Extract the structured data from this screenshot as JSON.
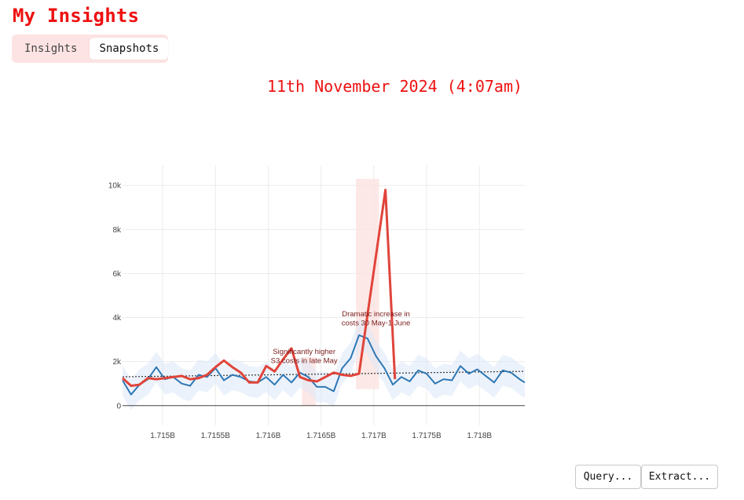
{
  "header": {
    "title": "My Insights"
  },
  "tabs": [
    {
      "label": "Insights",
      "active": false
    },
    {
      "label": "Snapshots",
      "active": true
    }
  ],
  "snapshot": {
    "date": "11th November 2024 (4:07am)"
  },
  "buttons": {
    "query": "Query...",
    "extract": "Extract..."
  },
  "colors": {
    "title": "#ee1111",
    "baseline_series": "#2e78b4",
    "anomaly_series": "#e0443a",
    "band": "#dce8f7",
    "highlight": "#fbe2e0",
    "annotation_text": "#7a1c1c"
  },
  "chart_data": {
    "type": "line",
    "title": "",
    "xlabel": "",
    "ylabel": "",
    "xlim": [
      1.71462,
      1.71843
    ],
    "ylim": [
      -900,
      10900
    ],
    "grid": true,
    "x_ticks": [
      {
        "value": 1.715,
        "label": "1.715B"
      },
      {
        "value": 1.7155,
        "label": "1.7155B"
      },
      {
        "value": 1.716,
        "label": "1.716B"
      },
      {
        "value": 1.7165,
        "label": "1.7165B"
      },
      {
        "value": 1.717,
        "label": "1.717B"
      },
      {
        "value": 1.7175,
        "label": "1.7175B"
      },
      {
        "value": 1.718,
        "label": "1.718B"
      }
    ],
    "y_ticks": [
      {
        "value": 0,
        "label": "0"
      },
      {
        "value": 2000,
        "label": "2k"
      },
      {
        "value": 4000,
        "label": "4k"
      },
      {
        "value": 6000,
        "label": "6k"
      },
      {
        "value": 8000,
        "label": "8k"
      },
      {
        "value": 10000,
        "label": "10k"
      }
    ],
    "threshold": {
      "value": 1450,
      "style": "dotted"
    },
    "band_width": 700,
    "series": [
      {
        "role": "baseline",
        "x": [
          1.71462,
          1.7147,
          1.71478,
          1.71486,
          1.71494,
          1.71502,
          1.7151,
          1.71518,
          1.71526,
          1.71534,
          1.71542,
          1.7155,
          1.71558,
          1.71566,
          1.71574,
          1.71582,
          1.7159,
          1.71598,
          1.71606,
          1.71614,
          1.71622,
          1.7163,
          1.71638,
          1.71646,
          1.71654,
          1.71662,
          1.7167,
          1.71678,
          1.71686,
          1.71694,
          1.71702,
          1.7171,
          1.71718,
          1.71726,
          1.71734,
          1.71742,
          1.7175,
          1.71758,
          1.71766,
          1.71774,
          1.71782,
          1.7179,
          1.71798,
          1.71806,
          1.71814,
          1.71822,
          1.7183,
          1.71838,
          1.71843
        ],
        "y": [
          1150,
          500,
          950,
          1200,
          1750,
          1200,
          1300,
          1000,
          900,
          1400,
          1300,
          1700,
          1150,
          1400,
          1300,
          1100,
          1050,
          1300,
          950,
          1400,
          1050,
          1500,
          1300,
          850,
          850,
          650,
          1700,
          2150,
          3200,
          3050,
          2250,
          1700,
          950,
          1300,
          1100,
          1600,
          1450,
          1000,
          1200,
          1150,
          1800,
          1450,
          1650,
          1350,
          1050,
          1600,
          1500,
          1200,
          1050
        ]
      },
      {
        "role": "anomaly",
        "x": [
          1.71462,
          1.7147,
          1.71478,
          1.71486,
          1.71494,
          1.71502,
          1.7151,
          1.71518,
          1.71526,
          1.71534,
          1.71542,
          1.7155,
          1.71558,
          1.71566,
          1.71574,
          1.71582,
          1.7159,
          1.71598,
          1.71606,
          1.71614,
          1.71622,
          1.7163,
          1.71638,
          1.71646,
          1.71654,
          1.71662,
          1.7167,
          1.71678,
          1.71686,
          1.71711,
          1.7172
        ],
        "y": [
          1250,
          900,
          950,
          1250,
          1200,
          1250,
          1300,
          1350,
          1200,
          1250,
          1400,
          1750,
          2050,
          1750,
          1500,
          1050,
          1050,
          1800,
          1550,
          2100,
          2600,
          1300,
          1150,
          1100,
          1300,
          1500,
          1400,
          1350,
          1450,
          9800,
          1200
        ]
      }
    ],
    "highlights": [
      {
        "x0": 1.71632,
        "x1": 1.71645,
        "y0": 0,
        "y1": 2200
      },
      {
        "x0": 1.71683,
        "x1": 1.71705,
        "y0": 750,
        "y1": 10300
      }
    ],
    "annotations": [
      {
        "lines": [
          "Significantly higher",
          "S3 costs in late May"
        ],
        "x": 1.71634,
        "y": 2350
      },
      {
        "lines": [
          "Dramatic increase in",
          "costs 30 May-1 June"
        ],
        "x": 1.71702,
        "y": 4050
      }
    ]
  }
}
